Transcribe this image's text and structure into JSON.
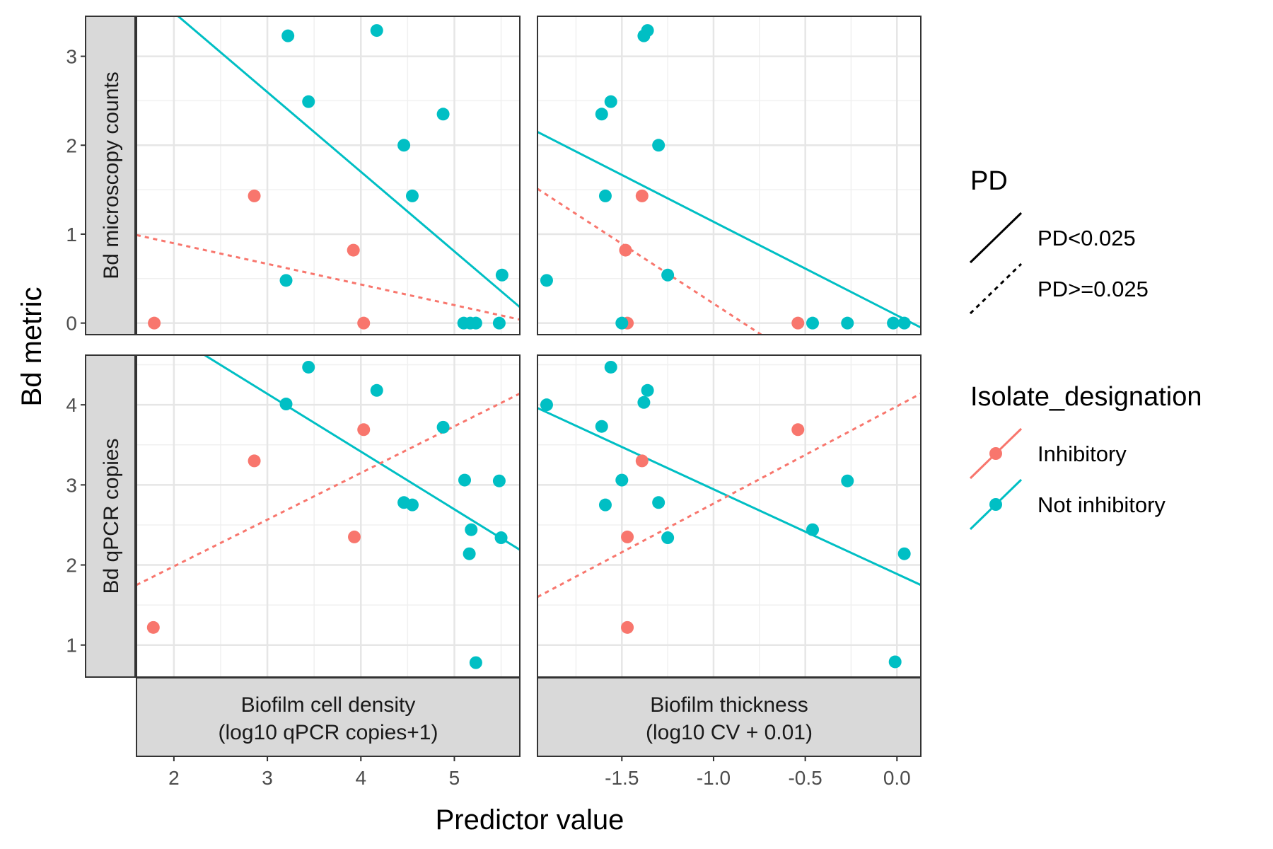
{
  "chart_data": {
    "type": "scatter",
    "xlabel": "Predictor value",
    "ylabel": "Bd metric",
    "facet_columns": [
      {
        "label_line1": "Biofilm cell density",
        "label_line2": "(log10 qPCR copies+1)",
        "xlim": [
          1.6,
          5.7
        ],
        "xticks": [
          2,
          3,
          4,
          5
        ],
        "xtick_labels": [
          "2",
          "3",
          "4",
          "5"
        ]
      },
      {
        "label_line1": "Biofilm thickness",
        "label_line2": "(log10 CV + 0.01)",
        "xlim": [
          -1.96,
          0.13
        ],
        "xticks": [
          -1.5,
          -1.0,
          -0.5,
          0.0
        ],
        "xtick_labels": [
          "-1.5",
          "-1.0",
          "-0.5",
          "0.0"
        ]
      }
    ],
    "facet_rows": [
      {
        "label": "Bd microscopy counts",
        "ylim": [
          -0.13,
          3.45
        ],
        "yticks": [
          0,
          1,
          2,
          3
        ],
        "ytick_labels": [
          "0",
          "1",
          "2",
          "3"
        ]
      },
      {
        "label": "Bd qPCR copies",
        "ylim": [
          0.6,
          4.62
        ],
        "yticks": [
          1,
          2,
          3,
          4
        ],
        "ytick_labels": [
          "1",
          "2",
          "3",
          "4"
        ]
      }
    ],
    "colors": {
      "Inhibitory": "#F8766D",
      "Not inhibitory": "#00BFC4"
    },
    "panels": [
      {
        "row": 0,
        "col": 0,
        "points": {
          "Inhibitory": [
            [
              1.79,
              0.0
            ],
            [
              2.86,
              1.43
            ],
            [
              3.92,
              0.82
            ],
            [
              4.03,
              0.0
            ]
          ],
          "Not inhibitory": [
            [
              3.2,
              0.48
            ],
            [
              3.22,
              3.23
            ],
            [
              3.44,
              2.49
            ],
            [
              4.17,
              3.29
            ],
            [
              4.46,
              2.0
            ],
            [
              4.55,
              1.43
            ],
            [
              4.88,
              2.35
            ],
            [
              5.1,
              0.0
            ],
            [
              5.17,
              0.0
            ],
            [
              5.23,
              0.0
            ],
            [
              5.48,
              0.0
            ],
            [
              5.51,
              0.54
            ]
          ]
        },
        "lines": [
          {
            "group": "Not inhibitory",
            "pd": "PD<0.025",
            "x": [
              1.6,
              5.7
            ],
            "y": [
              3.85,
              0.18
            ]
          },
          {
            "group": "Inhibitory",
            "pd": "PD>=0.025",
            "x": [
              1.6,
              5.7
            ],
            "y": [
              0.99,
              0.04
            ]
          }
        ]
      },
      {
        "row": 0,
        "col": 1,
        "points": {
          "Inhibitory": [
            [
              -1.39,
              1.43
            ],
            [
              -1.48,
              0.82
            ],
            [
              -1.47,
              0.0
            ],
            [
              -0.54,
              0.0
            ]
          ],
          "Not inhibitory": [
            [
              -1.91,
              0.48
            ],
            [
              -1.61,
              2.35
            ],
            [
              -1.56,
              2.49
            ],
            [
              -1.59,
              1.43
            ],
            [
              -1.38,
              3.23
            ],
            [
              -1.36,
              3.29
            ],
            [
              -1.3,
              2.0
            ],
            [
              -1.25,
              0.54
            ],
            [
              -1.5,
              0.0
            ],
            [
              -0.46,
              0.0
            ],
            [
              -0.27,
              0.0
            ],
            [
              -0.02,
              0.0
            ],
            [
              0.04,
              0.0
            ]
          ]
        },
        "lines": [
          {
            "group": "Not inhibitory",
            "pd": "PD<0.025",
            "x": [
              -1.96,
              0.13
            ],
            "y": [
              2.15,
              -0.05
            ]
          },
          {
            "group": "Inhibitory",
            "pd": "PD>=0.025",
            "x": [
              -1.96,
              -0.74
            ],
            "y": [
              1.51,
              -0.13
            ]
          }
        ]
      },
      {
        "row": 1,
        "col": 0,
        "points": {
          "Inhibitory": [
            [
              1.78,
              1.22
            ],
            [
              2.86,
              3.3
            ],
            [
              3.93,
              2.35
            ],
            [
              4.03,
              3.69
            ]
          ],
          "Not inhibitory": [
            [
              3.2,
              4.01
            ],
            [
              3.44,
              4.47
            ],
            [
              4.17,
              4.18
            ],
            [
              4.46,
              2.78
            ],
            [
              4.55,
              2.75
            ],
            [
              4.88,
              3.72
            ],
            [
              5.11,
              3.06
            ],
            [
              5.16,
              2.14
            ],
            [
              5.18,
              2.44
            ],
            [
              5.23,
              0.78
            ],
            [
              5.48,
              3.05
            ],
            [
              5.5,
              2.34
            ]
          ]
        },
        "lines": [
          {
            "group": "Not inhibitory",
            "pd": "PD<0.025",
            "x": [
              2.33,
              5.7
            ],
            "y": [
              4.62,
              2.19
            ]
          },
          {
            "group": "Inhibitory",
            "pd": "PD>=0.025",
            "x": [
              1.6,
              5.7
            ],
            "y": [
              1.75,
              4.14
            ]
          }
        ]
      },
      {
        "row": 1,
        "col": 1,
        "points": {
          "Inhibitory": [
            [
              -1.39,
              3.3
            ],
            [
              -1.47,
              2.35
            ],
            [
              -1.47,
              1.22
            ],
            [
              -0.54,
              3.69
            ]
          ],
          "Not inhibitory": [
            [
              -1.91,
              4.0
            ],
            [
              -1.61,
              3.73
            ],
            [
              -1.56,
              4.47
            ],
            [
              -1.59,
              2.75
            ],
            [
              -1.5,
              3.06
            ],
            [
              -1.38,
              4.03
            ],
            [
              -1.36,
              4.18
            ],
            [
              -1.3,
              2.78
            ],
            [
              -1.25,
              2.34
            ],
            [
              -0.46,
              2.44
            ],
            [
              -0.27,
              3.05
            ],
            [
              -0.01,
              0.79
            ],
            [
              0.04,
              2.14
            ]
          ]
        },
        "lines": [
          {
            "group": "Not inhibitory",
            "pd": "PD<0.025",
            "x": [
              -1.96,
              0.13
            ],
            "y": [
              3.96,
              1.75
            ]
          },
          {
            "group": "Inhibitory",
            "pd": "PD>=0.025",
            "x": [
              -1.96,
              0.13
            ],
            "y": [
              1.6,
              4.14
            ]
          }
        ]
      }
    ],
    "legend": {
      "position": "right",
      "linetype_title": "PD",
      "linetype_items": [
        "PD<0.025",
        "PD>=0.025"
      ],
      "color_title": "Isolate_designation",
      "color_items": [
        "Inhibitory",
        "Not inhibitory"
      ]
    },
    "grid": true
  }
}
